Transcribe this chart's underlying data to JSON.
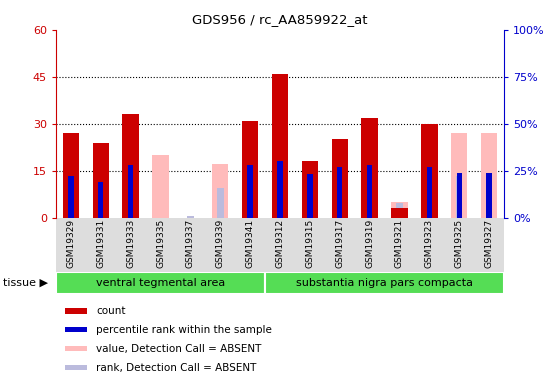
{
  "title": "GDS956 / rc_AA859922_at",
  "categories": [
    "GSM19329",
    "GSM19331",
    "GSM19333",
    "GSM19335",
    "GSM19337",
    "GSM19339",
    "GSM19341",
    "GSM19312",
    "GSM19315",
    "GSM19317",
    "GSM19319",
    "GSM19321",
    "GSM19323",
    "GSM19325",
    "GSM19327"
  ],
  "group1_name": "ventral tegmental area",
  "group1_count": 7,
  "group2_name": "substantia nigra pars compacta",
  "group2_count": 8,
  "count": [
    27,
    24,
    33,
    0,
    0,
    0,
    31,
    46,
    18,
    25,
    32,
    3,
    30,
    0,
    0
  ],
  "rank": [
    22,
    19,
    28,
    0,
    0,
    0,
    28,
    30,
    23,
    27,
    28,
    0,
    27,
    24,
    24
  ],
  "absent_value": [
    0,
    0,
    0,
    20,
    0,
    17,
    0,
    0,
    0,
    0,
    0,
    5,
    0,
    27,
    27
  ],
  "absent_rank": [
    0,
    0,
    0,
    0,
    1,
    16,
    0,
    0,
    0,
    0,
    0,
    8,
    0,
    22,
    22
  ],
  "color_count": "#cc0000",
  "color_rank": "#0000cc",
  "color_absent_value": "#ffbbbb",
  "color_absent_rank": "#bbbbdd",
  "ylim_left": [
    0,
    60
  ],
  "ylim_right": [
    0,
    100
  ],
  "yticks_left": [
    0,
    15,
    30,
    45,
    60
  ],
  "yticks_right": [
    0,
    25,
    50,
    75,
    100
  ],
  "ytick_labels_left": [
    "0",
    "15",
    "30",
    "45",
    "60"
  ],
  "ytick_labels_right": [
    "0%",
    "25%",
    "50%",
    "75%",
    "100%"
  ],
  "group_color": "#55dd55",
  "bar_width": 0.55,
  "rank_bar_width": 0.18,
  "legend_items": [
    {
      "label": "count",
      "color": "#cc0000"
    },
    {
      "label": "percentile rank within the sample",
      "color": "#0000cc"
    },
    {
      "label": "value, Detection Call = ABSENT",
      "color": "#ffbbbb"
    },
    {
      "label": "rank, Detection Call = ABSENT",
      "color": "#bbbbdd"
    }
  ]
}
